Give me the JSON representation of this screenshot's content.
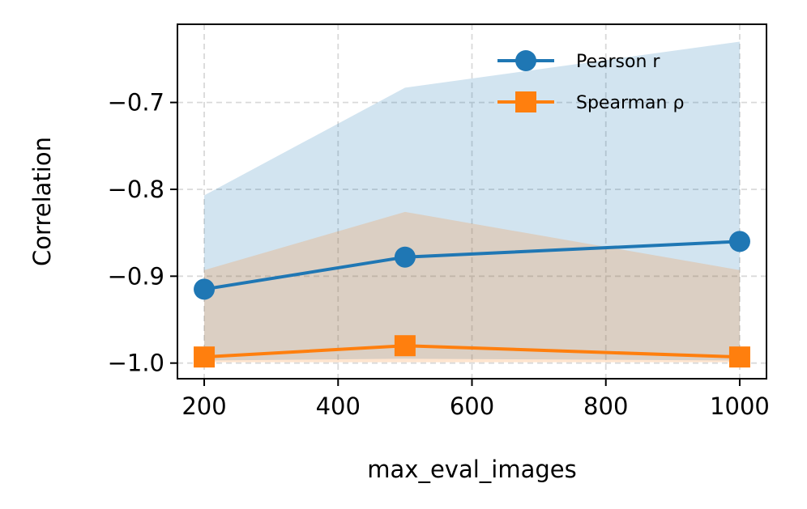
{
  "chart_data": {
    "type": "line",
    "xlabel": "max_eval_images",
    "ylabel": "Correlation",
    "xlim": [
      160,
      1040
    ],
    "ylim": [
      -1.018,
      -0.61
    ],
    "xticks": [
      200,
      400,
      600,
      800,
      1000
    ],
    "xtick_labels": [
      "200",
      "400",
      "600",
      "800",
      "1000"
    ],
    "yticks": [
      -1.0,
      -0.9,
      -0.8,
      -0.7
    ],
    "ytick_labels": [
      "−1.0",
      "−0.9",
      "−0.8",
      "−0.7"
    ],
    "grid": true,
    "legend_position": "top-right",
    "x": [
      200,
      500,
      1000
    ],
    "series": [
      {
        "name": "Pearson r",
        "marker": "circle",
        "color": "#1f77b4",
        "values": [
          -0.915,
          -0.878,
          -0.86
        ],
        "band_low": [
          -0.997,
          -0.995,
          -0.997
        ],
        "band_high": [
          -0.807,
          -0.683,
          -0.63
        ]
      },
      {
        "name": "Spearman ρ",
        "marker": "square",
        "color": "#ff7f0e",
        "values": [
          -0.993,
          -0.98,
          -0.993
        ],
        "band_low": [
          -0.999,
          -0.999,
          -0.999
        ],
        "band_high": [
          -0.893,
          -0.826,
          -0.893
        ]
      }
    ]
  }
}
